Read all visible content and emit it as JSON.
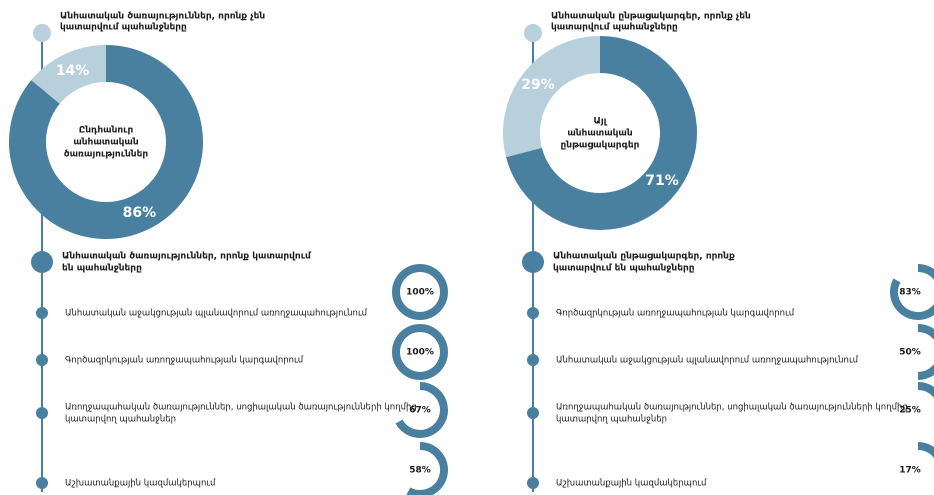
{
  "panels": [
    {
      "top_label": [
        "Անհատական ծառայություններ, որոնք չեն",
        "կատարվում պահանջները"
      ],
      "center_label": [
        "Ընդհանուր",
        "անհատական",
        "ծառայություններ"
      ],
      "donut": {
        "values": [
          86,
          14
        ],
        "value_labels": [
          "86%",
          "14%"
        ],
        "colors": [
          "#4a809f",
          "#b8cfdc"
        ]
      },
      "section_label": [
        "Անհատական ծառայություններ, որոնք կատարվում",
        "են պահանջները"
      ],
      "items": [
        {
          "label": [
            "Անհատական աջակցության պլանավորում առողջապահությունում"
          ],
          "value": 100,
          "value_label": "100%"
        },
        {
          "label": [
            "Գործազրկության առողջապահության կարգավորում"
          ],
          "value": 100,
          "value_label": "100%"
        },
        {
          "label": [
            "Առողջապահական ծառայություններ, սոցիալական ծառայությունների կողմից",
            "կատարվող պահանջներ"
          ],
          "value": 67,
          "value_label": "67%"
        },
        {
          "label": [
            "Աշխատանքային կազմակերպում"
          ],
          "value": 58,
          "value_label": "58%"
        }
      ]
    },
    {
      "top_label": [
        "Անհատական ընթացակարգեր, որոնք չեն",
        "կատարվում պահանջները"
      ],
      "center_label": [
        "Այլ",
        "անհատական",
        "ընթացակարգեր"
      ],
      "donut": {
        "values": [
          71,
          29
        ],
        "value_labels": [
          "71%",
          "29%"
        ],
        "colors": [
          "#4a809f",
          "#b8cfdc"
        ]
      },
      "section_label": [
        "Անհատական ընթացակարգեր, որոնք",
        "կատարվում են պահանջները"
      ],
      "items": [
        {
          "label": [
            "Գործազրկության առողջապահության կարգավորում"
          ],
          "value": 83,
          "value_label": "83%"
        },
        {
          "label": [
            "Անհատական աջակցության պլանավորում առողջապահությունում"
          ],
          "value": 50,
          "value_label": "50%"
        },
        {
          "label": [
            "Առողջապահական ծառայություններ, սոցիալական ծառայությունների կողմից",
            "կատարվող պահանջներ"
          ],
          "value": 25,
          "value_label": "25%"
        },
        {
          "label": [
            "Աշխատանքային կազմակերպում"
          ],
          "value": 17,
          "value_label": "17%"
        }
      ]
    }
  ]
}
